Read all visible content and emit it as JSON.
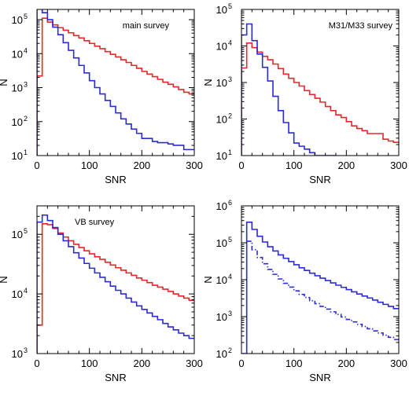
{
  "colors": {
    "red_series": "#e8262a",
    "blue_series": "#2b2bd4",
    "axes": "#000000"
  },
  "chart_data": [
    {
      "type": "line",
      "step": true,
      "scale": "log-y",
      "annotation": "main survey",
      "xlabel": "SNR",
      "ylabel": "N",
      "xlim": [
        0,
        300
      ],
      "ylim": [
        10,
        200000
      ],
      "x_ticks": [
        0,
        100,
        200,
        300
      ],
      "y_ticks": [
        10,
        100,
        1000,
        10000,
        100000
      ],
      "y_tick_labels": [
        {
          "base": "10",
          "exp": "1"
        },
        {
          "base": "10",
          "exp": "2"
        },
        {
          "base": "10",
          "exp": "3"
        },
        {
          "base": "10",
          "exp": "4"
        },
        {
          "base": "10",
          "exp": "5"
        }
      ],
      "bin_edges": [
        0,
        10,
        20,
        30,
        40,
        50,
        60,
        70,
        80,
        90,
        100,
        110,
        120,
        130,
        140,
        150,
        160,
        170,
        180,
        190,
        200,
        210,
        220,
        230,
        240,
        250,
        260,
        270,
        280,
        290,
        300
      ],
      "series": [
        {
          "color": "red",
          "style": "solid",
          "values": [
            2200,
            110000,
            85000,
            70000,
            58000,
            49000,
            41000,
            34000,
            29000,
            24000,
            20000,
            16500,
            14000,
            11500,
            9500,
            8000,
            6600,
            5500,
            4500,
            3700,
            3000,
            2500,
            2100,
            1750,
            1450,
            1250,
            1050,
            880,
            730,
            650
          ]
        },
        {
          "color": "blue",
          "style": "solid",
          "values": [
            250000,
            160000,
            100000,
            60000,
            36000,
            21000,
            12500,
            7500,
            4500,
            2700,
            1600,
            1000,
            650,
            420,
            280,
            180,
            120,
            85,
            60,
            45,
            32,
            32,
            26,
            24,
            24,
            22,
            20,
            20,
            15,
            15
          ]
        }
      ]
    },
    {
      "type": "line",
      "step": true,
      "scale": "log-y",
      "annotation": "M31/M33 survey",
      "xlabel": "SNR",
      "ylabel": "N",
      "xlim": [
        0,
        300
      ],
      "ylim": [
        10,
        100000
      ],
      "x_ticks": [
        0,
        100,
        200,
        300
      ],
      "y_ticks": [
        10,
        100,
        1000,
        10000,
        100000
      ],
      "y_tick_labels": [
        {
          "base": "10",
          "exp": "1"
        },
        {
          "base": "10",
          "exp": "2"
        },
        {
          "base": "10",
          "exp": "3"
        },
        {
          "base": "10",
          "exp": "4"
        },
        {
          "base": "10",
          "exp": "5"
        }
      ],
      "bin_edges": [
        0,
        10,
        20,
        30,
        40,
        50,
        60,
        70,
        80,
        90,
        100,
        110,
        120,
        130,
        140,
        150,
        160,
        170,
        180,
        190,
        200,
        210,
        220,
        230,
        240,
        250,
        260,
        270,
        280,
        290,
        300
      ],
      "series": [
        {
          "color": "red",
          "style": "solid",
          "values": [
            2500,
            12000,
            9000,
            6800,
            5200,
            4200,
            3200,
            2400,
            1700,
            1300,
            1000,
            800,
            600,
            470,
            370,
            290,
            220,
            170,
            130,
            110,
            85,
            65,
            55,
            48,
            40,
            40,
            40,
            28,
            25,
            23
          ]
        },
        {
          "color": "blue",
          "style": "solid",
          "values": [
            20000,
            40000,
            14000,
            6000,
            2600,
            1100,
            420,
            170,
            80,
            42,
            22,
            18,
            15,
            12,
            10,
            10,
            10,
            10
          ]
        }
      ]
    },
    {
      "type": "line",
      "step": true,
      "scale": "log-y",
      "annotation": "VB survey",
      "xlabel": "SNR",
      "ylabel": "N",
      "xlim": [
        0,
        300
      ],
      "ylim": [
        1000,
        300000
      ],
      "x_ticks": [
        0,
        100,
        200,
        300
      ],
      "y_ticks": [
        1000,
        10000,
        100000
      ],
      "y_tick_labels": [
        {
          "base": "10",
          "exp": "3"
        },
        {
          "base": "10",
          "exp": "4"
        },
        {
          "base": "10",
          "exp": "5"
        }
      ],
      "bin_edges": [
        0,
        10,
        20,
        30,
        40,
        50,
        60,
        70,
        80,
        90,
        100,
        110,
        120,
        130,
        140,
        150,
        160,
        170,
        180,
        190,
        200,
        210,
        220,
        230,
        240,
        250,
        260,
        270,
        280,
        290,
        300
      ],
      "series": [
        {
          "color": "red",
          "style": "solid",
          "values": [
            3000,
            150000,
            145000,
            125000,
            105000,
            90000,
            78000,
            68000,
            60000,
            53000,
            47000,
            42000,
            38000,
            34000,
            30500,
            27500,
            25000,
            22500,
            20500,
            18500,
            17000,
            15500,
            14000,
            13000,
            12000,
            11000,
            10000,
            9200,
            8500,
            7800
          ]
        },
        {
          "color": "blue",
          "style": "solid",
          "values": [
            160000,
            210000,
            170000,
            130000,
            100000,
            78000,
            62000,
            49000,
            40000,
            32500,
            27000,
            22500,
            19000,
            16000,
            13500,
            11500,
            10000,
            8500,
            7300,
            6300,
            5500,
            4800,
            4200,
            3700,
            3200,
            2800,
            2500,
            2200,
            2000,
            1800
          ]
        }
      ]
    },
    {
      "type": "line",
      "step": true,
      "scale": "log-y",
      "annotation": "",
      "xlabel": "SNR",
      "ylabel": "N",
      "xlim": [
        0,
        300
      ],
      "ylim": [
        100,
        1000000
      ],
      "x_ticks": [
        0,
        100,
        200,
        300
      ],
      "y_ticks": [
        100,
        1000,
        10000,
        100000,
        1000000
      ],
      "y_tick_labels": [
        {
          "base": "10",
          "exp": "2"
        },
        {
          "base": "10",
          "exp": "3"
        },
        {
          "base": "10",
          "exp": "4"
        },
        {
          "base": "10",
          "exp": "5"
        },
        {
          "base": "10",
          "exp": "6"
        }
      ],
      "bin_edges": [
        0,
        10,
        20,
        30,
        40,
        50,
        60,
        70,
        80,
        90,
        100,
        110,
        120,
        130,
        140,
        150,
        160,
        170,
        180,
        190,
        200,
        210,
        220,
        230,
        240,
        250,
        260,
        270,
        280,
        290,
        300
      ],
      "series": [
        {
          "color": "blue",
          "style": "solid",
          "values": [
            100,
            360000,
            230000,
            150000,
            105000,
            78000,
            60000,
            47000,
            38000,
            31000,
            25500,
            21000,
            17800,
            15000,
            12800,
            11000,
            9500,
            8200,
            7100,
            6200,
            5400,
            4700,
            4100,
            3600,
            3200,
            2800,
            2450,
            2150,
            1900,
            1650
          ]
        },
        {
          "color": "blue",
          "style": "dashdot",
          "values": [
            null,
            110000,
            65000,
            40000,
            27000,
            19000,
            14000,
            10500,
            8000,
            6300,
            5000,
            4000,
            3300,
            2700,
            2250,
            1900,
            1600,
            1350,
            1150,
            980,
            840,
            720,
            620,
            540,
            470,
            410,
            360,
            315,
            275,
            240
          ]
        }
      ]
    }
  ]
}
